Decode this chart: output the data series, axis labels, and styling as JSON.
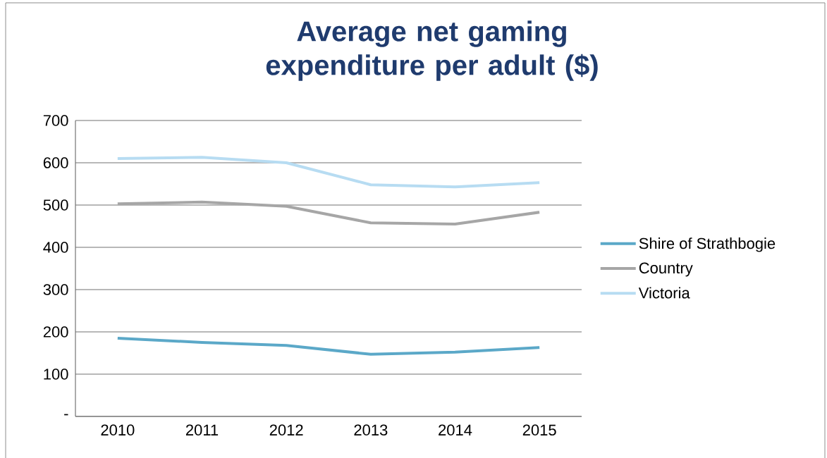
{
  "chart_data": {
    "type": "line",
    "title": "Average net gaming expenditure per adult ($)",
    "categories": [
      "2010",
      "2011",
      "2012",
      "2013",
      "2014",
      "2015"
    ],
    "series": [
      {
        "name": "Shire of Strathbogie",
        "color": "#5ba8c8",
        "values": [
          185,
          175,
          168,
          147,
          152,
          163
        ]
      },
      {
        "name": "Country",
        "color": "#a6a6a6",
        "values": [
          503,
          507,
          497,
          458,
          455,
          483
        ]
      },
      {
        "name": "Victoria",
        "color": "#b7dcf2",
        "values": [
          610,
          613,
          600,
          548,
          543,
          553
        ]
      }
    ],
    "ylim": [
      0,
      700
    ],
    "yticks": [
      {
        "value": 0,
        "label": "-"
      },
      100,
      200,
      300,
      400,
      500,
      600,
      700
    ],
    "grid": "y",
    "legend": "right",
    "marker": "none",
    "line_style": "solid"
  }
}
